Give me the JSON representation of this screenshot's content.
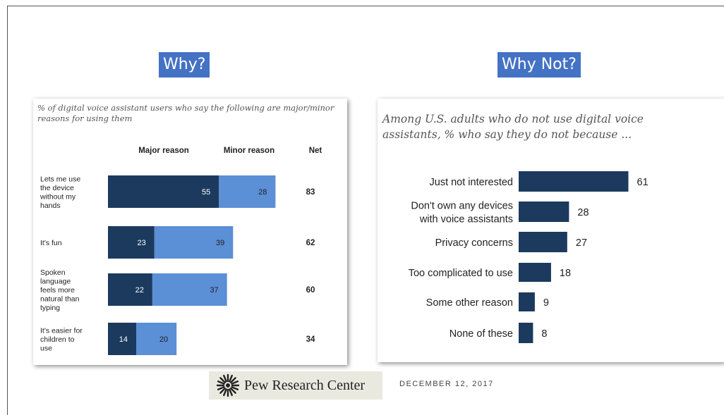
{
  "header": {
    "why_label": "Why?",
    "why_not_label": "Why Not?"
  },
  "footer": {
    "org_name": "Pew Research Center",
    "date": "DECEMBER 12, 2017"
  },
  "colors": {
    "major": "#1b3a5e",
    "minor": "#5b8fd6",
    "why_box": "#4472c4"
  },
  "chart_data": [
    {
      "type": "bar",
      "stacked": true,
      "orientation": "horizontal",
      "title": "% of digital voice assistant users who say the following are major/minor reasons for using them",
      "columns": [
        "Major reason",
        "Minor reason",
        "Net"
      ],
      "categories": [
        [
          "Lets me use",
          "the device",
          "without my",
          "hands"
        ],
        [
          "It's fun"
        ],
        [
          "Spoken",
          "language",
          "feels more",
          "natural than",
          "typing"
        ],
        [
          "It's easier for",
          "children to",
          "use"
        ]
      ],
      "series": [
        {
          "name": "Major reason",
          "values": [
            55,
            23,
            22,
            14
          ]
        },
        {
          "name": "Minor reason",
          "values": [
            28,
            39,
            37,
            20
          ]
        }
      ],
      "net": [
        83,
        62,
        60,
        34
      ]
    },
    {
      "type": "bar",
      "orientation": "horizontal",
      "title": "Among U.S. adults who do not use digital voice assistants, % who say they do not because ...",
      "categories": [
        [
          "Just not interested"
        ],
        [
          "Don't own any devices",
          "with voice assistants"
        ],
        [
          "Privacy concerns"
        ],
        [
          "Too complicated to use"
        ],
        [
          "Some other reason"
        ],
        [
          "None of these"
        ]
      ],
      "values": [
        61,
        28,
        27,
        18,
        9,
        8
      ]
    }
  ]
}
